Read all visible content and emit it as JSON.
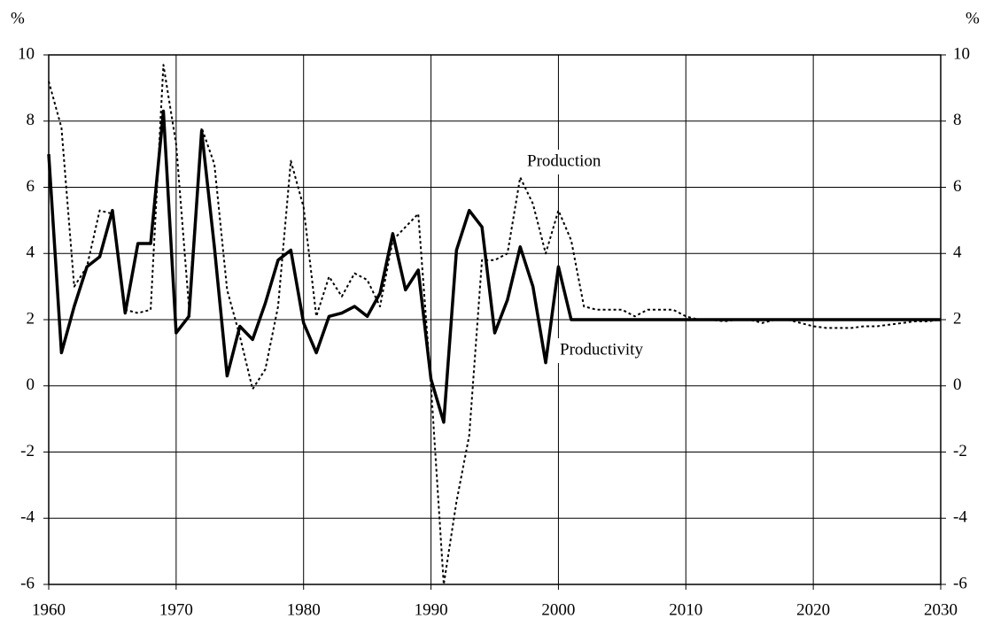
{
  "chart_data": {
    "type": "line",
    "ylabel": "%",
    "y2label": "%",
    "x": [
      1960,
      1961,
      1962,
      1963,
      1964,
      1965,
      1966,
      1967,
      1968,
      1969,
      1970,
      1971,
      1972,
      1973,
      1974,
      1975,
      1976,
      1977,
      1978,
      1979,
      1980,
      1981,
      1982,
      1983,
      1984,
      1985,
      1986,
      1987,
      1988,
      1989,
      1990,
      1991,
      1992,
      1993,
      1994,
      1995,
      1996,
      1997,
      1998,
      1999,
      2000,
      2001,
      2002,
      2003,
      2004,
      2005,
      2006,
      2007,
      2008,
      2009,
      2010,
      2011,
      2012,
      2013,
      2014,
      2015,
      2016,
      2017,
      2018,
      2019,
      2020,
      2021,
      2022,
      2023,
      2024,
      2025,
      2026,
      2027,
      2028,
      2029,
      2030
    ],
    "series": [
      {
        "name": "Production",
        "color": "#000000",
        "style": "dotted",
        "values": [
          9.2,
          7.8,
          3.0,
          3.6,
          5.3,
          5.2,
          2.3,
          2.2,
          2.3,
          9.7,
          7.3,
          2.4,
          7.8,
          6.7,
          2.9,
          1.5,
          -0.1,
          0.5,
          2.4,
          6.8,
          5.4,
          2.1,
          3.3,
          2.7,
          3.4,
          3.2,
          2.4,
          4.4,
          4.8,
          5.2,
          0.0,
          -6.0,
          -3.5,
          -1.5,
          3.8,
          3.8,
          4.0,
          6.3,
          5.5,
          4.0,
          5.3,
          4.4,
          2.4,
          2.3,
          2.3,
          2.3,
          2.1,
          2.3,
          2.3,
          2.3,
          2.1,
          2.0,
          2.0,
          1.95,
          2.0,
          2.0,
          1.9,
          2.0,
          2.0,
          1.9,
          1.8,
          1.75,
          1.75,
          1.75,
          1.8,
          1.8,
          1.85,
          1.9,
          1.95,
          1.95,
          2.0
        ]
      },
      {
        "name": "Productivity",
        "color": "#000000",
        "style": "solid",
        "values": [
          7.0,
          1.0,
          2.4,
          3.6,
          3.9,
          5.3,
          2.2,
          4.3,
          4.3,
          8.3,
          1.6,
          2.1,
          7.7,
          4.2,
          0.3,
          1.8,
          1.4,
          2.5,
          3.8,
          4.1,
          1.9,
          1.0,
          2.1,
          2.2,
          2.4,
          2.1,
          2.8,
          4.6,
          2.9,
          3.5,
          0.2,
          -1.1,
          4.1,
          5.3,
          4.8,
          1.6,
          2.6,
          4.2,
          3.0,
          0.7,
          3.6,
          2.0,
          2.0,
          2.0,
          2.0,
          2.0,
          2.0,
          2.0,
          2.0,
          2.0,
          2.0,
          2.0,
          2.0,
          2.0,
          2.0,
          2.0,
          2.0,
          2.0,
          2.0,
          2.0,
          2.0,
          2.0,
          2.0,
          2.0,
          2.0,
          2.0,
          2.0,
          2.0,
          2.0,
          2.0,
          2.0
        ]
      }
    ],
    "xlim": [
      1960,
      2030
    ],
    "xticks": [
      1960,
      1970,
      1980,
      1990,
      2000,
      2010,
      2020,
      2030
    ],
    "ylim": [
      -6,
      10
    ],
    "yticks": [
      -6,
      -4,
      -2,
      0,
      2,
      4,
      6,
      8,
      10
    ],
    "y2lim": [
      -6,
      10
    ],
    "y2ticks": [
      -6,
      -4,
      -2,
      0,
      2,
      4,
      6,
      8,
      10
    ],
    "grid": true
  }
}
